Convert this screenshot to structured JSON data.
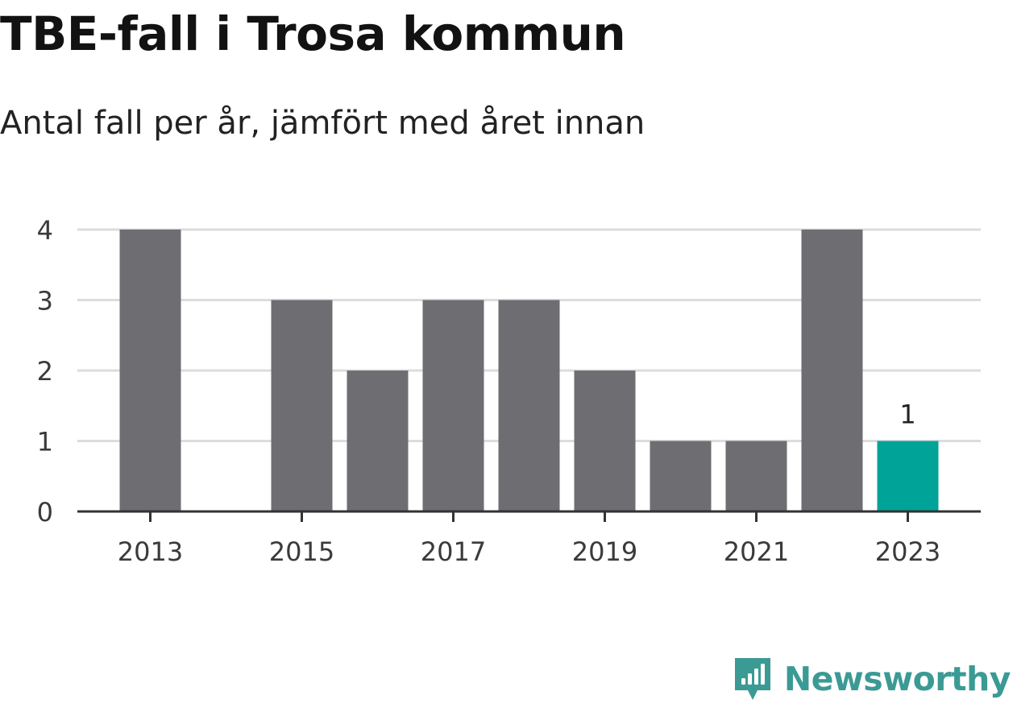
{
  "chart_data": {
    "type": "bar",
    "title": "TBE-fall i Trosa kommun",
    "subtitle": "Antal fall per år, jämfört med året innan",
    "categories": [
      "2013",
      "2014",
      "2015",
      "2016",
      "2017",
      "2018",
      "2019",
      "2020",
      "2021",
      "2022",
      "2023"
    ],
    "values": [
      4,
      0,
      3,
      2,
      3,
      3,
      2,
      1,
      1,
      4,
      1
    ],
    "x_tick_labels": [
      "2013",
      "2015",
      "2017",
      "2019",
      "2021",
      "2023"
    ],
    "y_tick_labels": [
      "0",
      "1",
      "2",
      "3",
      "4"
    ],
    "ylim": [
      0,
      4
    ],
    "grid": true,
    "highlight_index": 10,
    "highlight_label": "1",
    "colors": {
      "bar": "#6e6d72",
      "highlight": "#00a398",
      "grid": "#dcdcdc",
      "axis": "#333333"
    }
  },
  "brand": {
    "name": "Newsworthy",
    "icon": "newsworthy-logo-icon"
  }
}
